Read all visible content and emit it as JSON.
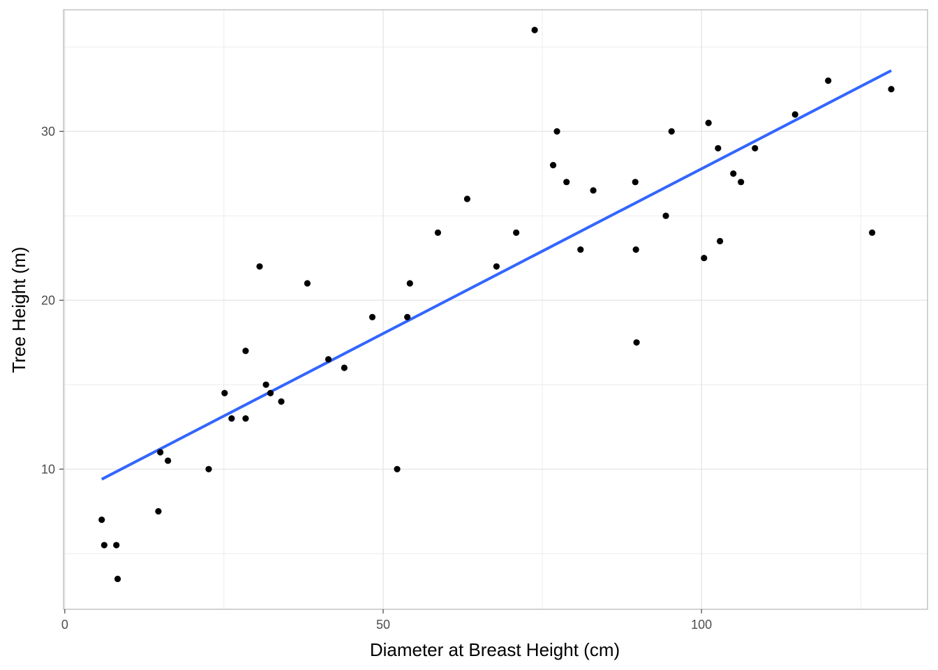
{
  "chart_data": {
    "type": "scatter",
    "title": "",
    "xlabel": "Diameter at Breast Height (cm)",
    "ylabel": "Tree Height (m)",
    "xlim": [
      -0.2,
      135.5
    ],
    "ylim": [
      1.7,
      37.2
    ],
    "xticks": [
      0,
      50,
      100
    ],
    "xtick_labels": [
      "0",
      "50",
      "100"
    ],
    "yticks": [
      10,
      20,
      30
    ],
    "ytick_labels": [
      "10",
      "20",
      "30"
    ],
    "x_minor_grid": [
      25,
      75,
      125
    ],
    "y_minor_grid": [
      5,
      15,
      25,
      35
    ],
    "grid": true,
    "legend": "none",
    "colors": {
      "points": "#000000",
      "fit_line": "#3366ff",
      "grid": "#e0e0e0",
      "panel_border": "#b3b3b3"
    },
    "points": [
      {
        "x": 5.8,
        "y": 7.0
      },
      {
        "x": 6.2,
        "y": 5.5
      },
      {
        "x": 8.1,
        "y": 5.5
      },
      {
        "x": 8.3,
        "y": 3.5
      },
      {
        "x": 14.7,
        "y": 7.5
      },
      {
        "x": 15.0,
        "y": 11.0
      },
      {
        "x": 16.2,
        "y": 10.5
      },
      {
        "x": 22.6,
        "y": 10.0
      },
      {
        "x": 25.1,
        "y": 14.5
      },
      {
        "x": 26.2,
        "y": 13.0
      },
      {
        "x": 28.4,
        "y": 17.0
      },
      {
        "x": 28.4,
        "y": 13.0
      },
      {
        "x": 30.6,
        "y": 22.0
      },
      {
        "x": 31.6,
        "y": 15.0
      },
      {
        "x": 32.3,
        "y": 14.5
      },
      {
        "x": 34.0,
        "y": 14.0
      },
      {
        "x": 38.1,
        "y": 21.0
      },
      {
        "x": 41.4,
        "y": 16.5
      },
      {
        "x": 43.9,
        "y": 16.0
      },
      {
        "x": 48.3,
        "y": 19.0
      },
      {
        "x": 52.2,
        "y": 10.0
      },
      {
        "x": 53.8,
        "y": 19.0
      },
      {
        "x": 54.2,
        "y": 21.0
      },
      {
        "x": 58.6,
        "y": 24.0
      },
      {
        "x": 63.2,
        "y": 26.0
      },
      {
        "x": 67.8,
        "y": 22.0
      },
      {
        "x": 70.9,
        "y": 24.0
      },
      {
        "x": 73.8,
        "y": 36.0
      },
      {
        "x": 76.7,
        "y": 28.0
      },
      {
        "x": 77.3,
        "y": 30.0
      },
      {
        "x": 78.8,
        "y": 27.0
      },
      {
        "x": 81.0,
        "y": 23.0
      },
      {
        "x": 83.0,
        "y": 26.5
      },
      {
        "x": 89.6,
        "y": 27.0
      },
      {
        "x": 89.7,
        "y": 23.0
      },
      {
        "x": 89.8,
        "y": 17.5
      },
      {
        "x": 94.4,
        "y": 25.0
      },
      {
        "x": 95.3,
        "y": 30.0
      },
      {
        "x": 100.4,
        "y": 22.5
      },
      {
        "x": 101.1,
        "y": 30.5
      },
      {
        "x": 102.6,
        "y": 29.0
      },
      {
        "x": 102.9,
        "y": 23.5
      },
      {
        "x": 105.0,
        "y": 27.5
      },
      {
        "x": 106.2,
        "y": 27.0
      },
      {
        "x": 108.4,
        "y": 29.0
      },
      {
        "x": 114.7,
        "y": 31.0
      },
      {
        "x": 119.9,
        "y": 33.0
      },
      {
        "x": 126.8,
        "y": 24.0
      },
      {
        "x": 129.8,
        "y": 32.5
      }
    ],
    "fit_line": {
      "method": "linear",
      "x": [
        5.8,
        129.8
      ],
      "y": [
        9.4,
        33.6
      ]
    }
  }
}
